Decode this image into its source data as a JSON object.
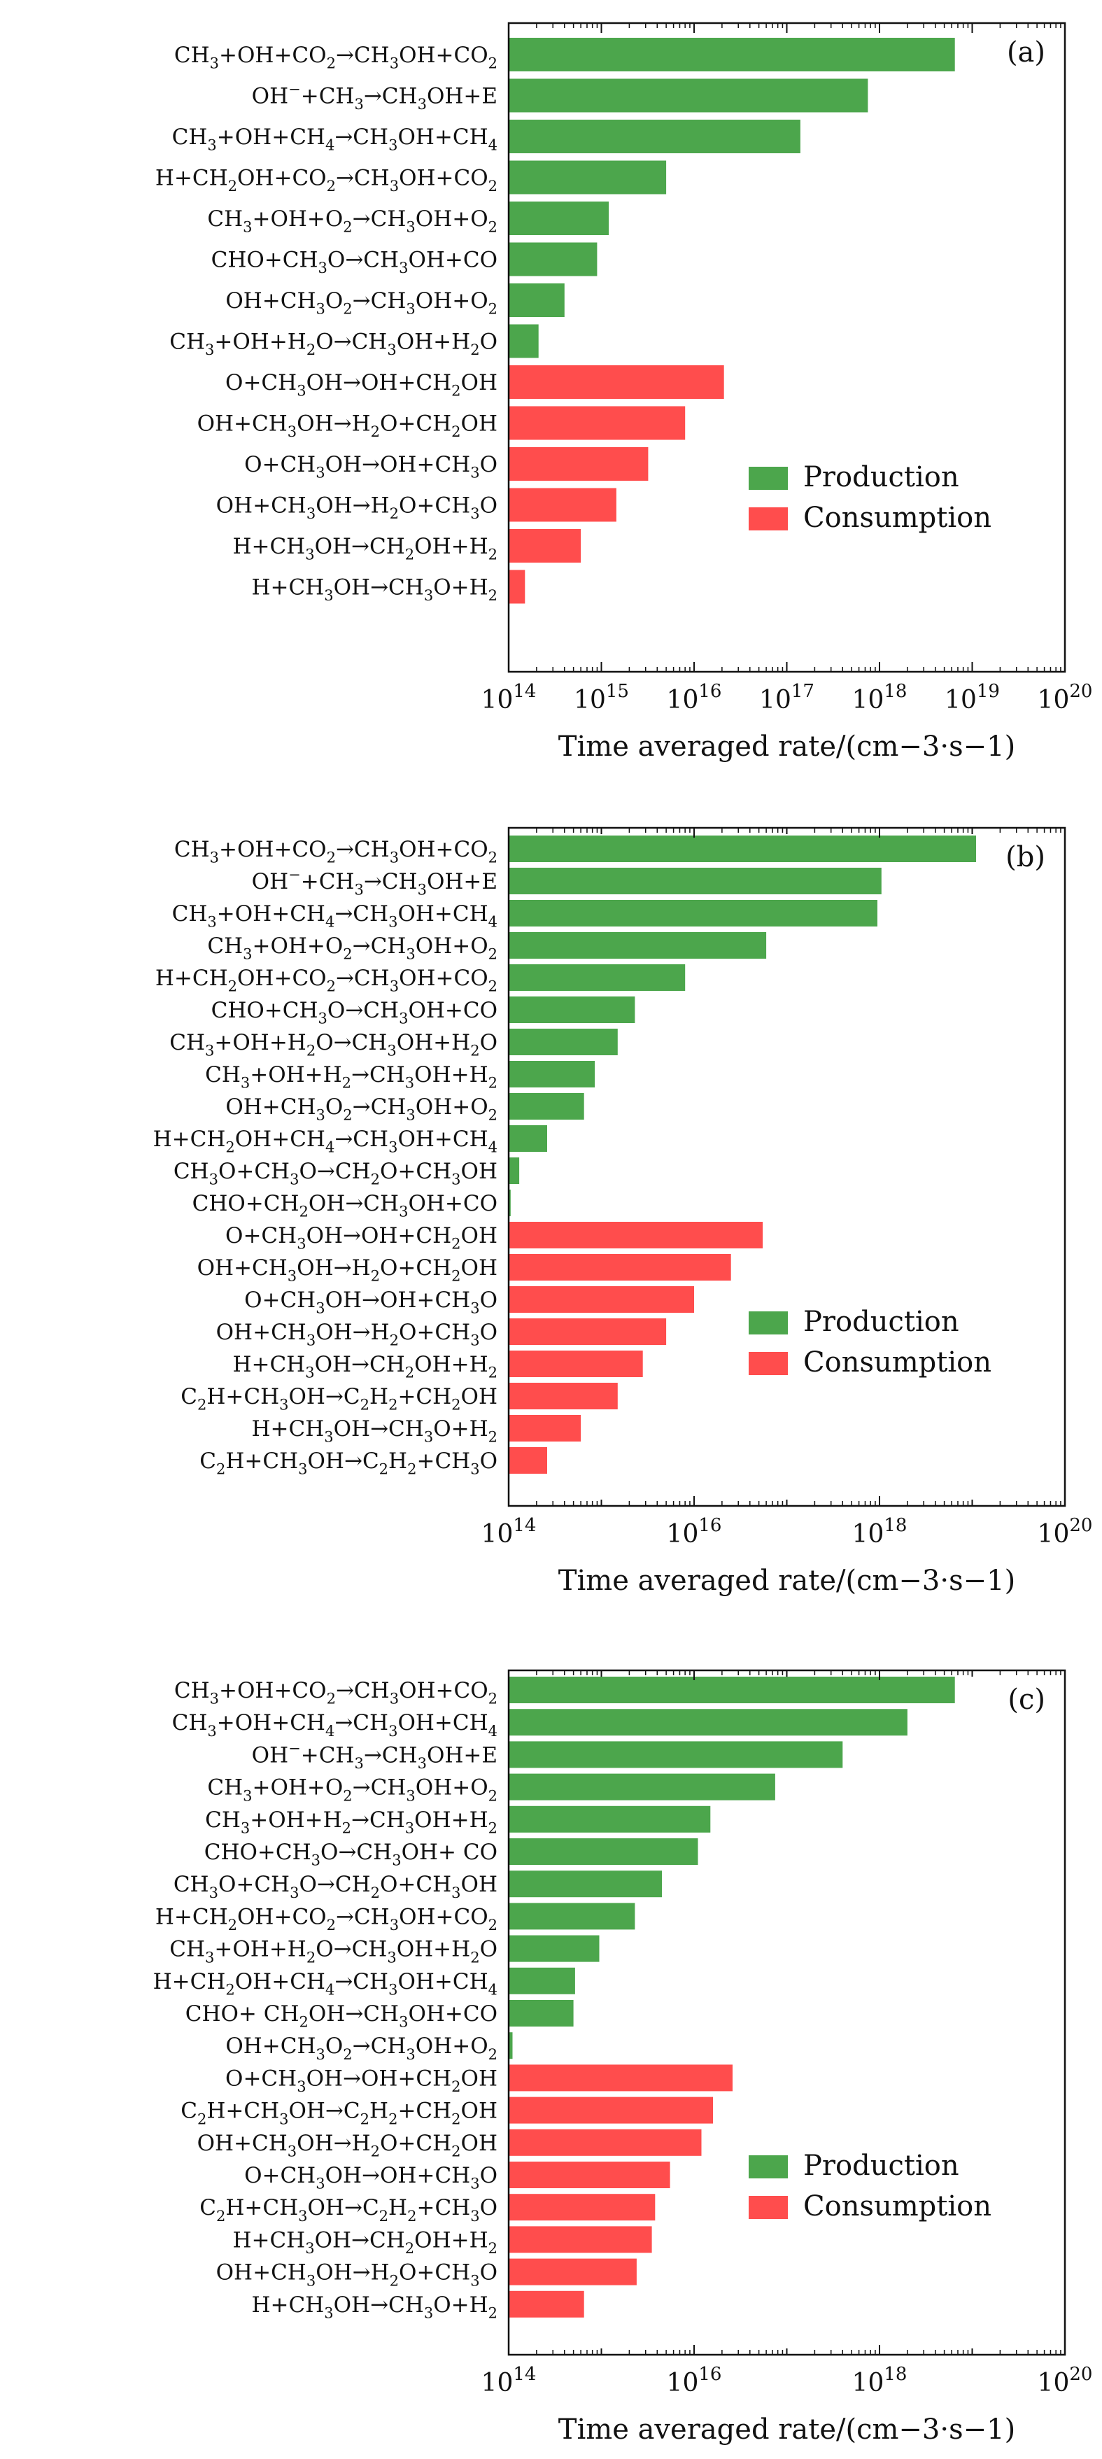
{
  "colors": {
    "production": "#4ca64c",
    "consumption": "#ff4d4d",
    "axis": "#111111"
  },
  "chart_data": [
    {
      "type": "bar",
      "orientation": "horizontal",
      "panel_label": "(a)",
      "xscale": "log10",
      "xlim": [
        100000000000000.0,
        1e+20
      ],
      "xticks": [
        14,
        15,
        16,
        17,
        18,
        19,
        20
      ],
      "xlabel": "Time averaged rate/(cm−3·s−1)",
      "legend": {
        "placement": "center-right",
        "entries": [
          "Production",
          "Consumption"
        ]
      },
      "series": [
        {
          "name": "Production",
          "reactions": [
            {
              "label": "CH3+OH+CO2→CH3OH+CO2",
              "value": 6.5e+18
            },
            {
              "label": "OH−+CH3→CH3OH+E",
              "value": 7.5e+17
            },
            {
              "label": "CH3+OH+CH4→CH3OH+CH4",
              "value": 1.4e+17
            },
            {
              "label": "H+CH2OH+CO2→CH3OH+CO2",
              "value": 5000000000000000.0
            },
            {
              "label": "CH3+OH+O2→CH3OH+O2",
              "value": 1200000000000000.0
            },
            {
              "label": "CHO+CH3O→CH3OH+CO",
              "value": 900000000000000.0
            },
            {
              "label": "OH+CH3O2→CH3OH+O2",
              "value": 400000000000000.0
            },
            {
              "label": "CH3+OH+H2O→CH3OH+H2O",
              "value": 210000000000000.0
            }
          ]
        },
        {
          "name": "Consumption",
          "reactions": [
            {
              "label": "O+CH3OH→OH+CH2OH",
              "value": 2.1e+16
            },
            {
              "label": "OH+CH3OH→H2O+CH2OH",
              "value": 8000000000000000.0
            },
            {
              "label": "O+CH3OH→OH+CH3O",
              "value": 3200000000000000.0
            },
            {
              "label": "OH+CH3OH→H2O+CH3O",
              "value": 1450000000000000.0
            },
            {
              "label": "H+CH3OH→CH2OH+H2",
              "value": 600000000000000.0
            },
            {
              "label": "H+CH3OH→CH3O+H2",
              "value": 150000000000000.0
            }
          ]
        }
      ]
    },
    {
      "type": "bar",
      "orientation": "horizontal",
      "panel_label": "(b)",
      "xscale": "log10",
      "xlim": [
        100000000000000.0,
        1e+20
      ],
      "xticks": [
        14,
        16,
        18,
        20
      ],
      "xlabel": "Time averaged rate/(cm−3·s−1)",
      "legend": {
        "placement": "center-right",
        "entries": [
          "Production",
          "Consumption"
        ]
      },
      "series": [
        {
          "name": "Production",
          "reactions": [
            {
              "label": "CH3+OH+CO2→CH3OH+CO2",
              "value": 1.1e+19
            },
            {
              "label": "OH−+CH3→CH3OH+E",
              "value": 1.05e+18
            },
            {
              "label": "CH3+OH+CH4→CH3OH+CH4",
              "value": 9.5e+17
            },
            {
              "label": "CH3+OH+O2→CH3OH+O2",
              "value": 6e+16
            },
            {
              "label": "H+CH2OH+CO2→CH3OH+CO2",
              "value": 8000000000000000.0
            },
            {
              "label": "CHO+CH3O→CH3OH+CO",
              "value": 2300000000000000.0
            },
            {
              "label": "CH3+OH+H2O→CH3OH+H2O",
              "value": 1500000000000000.0
            },
            {
              "label": "CH3+OH+H2→CH3OH+H2",
              "value": 850000000000000.0
            },
            {
              "label": "OH+CH3O2→CH3OH+O2",
              "value": 650000000000000.0
            },
            {
              "label": "H+CH2OH+CH4→CH3OH+CH4",
              "value": 260000000000000.0
            },
            {
              "label": "CH3O+CH3O→CH2O+CH3OH",
              "value": 130000000000000.0
            },
            {
              "label": "CHO+CH2OH→CH3OH+CO",
              "value": 105000000000000.0
            }
          ]
        },
        {
          "name": "Consumption",
          "reactions": [
            {
              "label": "O+CH3OH→OH+CH2OH",
              "value": 5.5e+16
            },
            {
              "label": "OH+CH3OH→H2O+CH2OH",
              "value": 2.5e+16
            },
            {
              "label": "O+CH3OH→OH+CH3O",
              "value": 1e+16
            },
            {
              "label": "OH+CH3OH→H2O+CH3O",
              "value": 5000000000000000.0
            },
            {
              "label": "H+CH3OH→CH2OH+H2",
              "value": 2800000000000000.0
            },
            {
              "label": "C2H+CH3OH→C2H2+CH2OH",
              "value": 1500000000000000.0
            },
            {
              "label": "H+CH3OH→CH3O+H2",
              "value": 600000000000000.0
            },
            {
              "label": "C2H+CH3OH→C2H2+CH3O",
              "value": 260000000000000.0
            }
          ]
        }
      ]
    },
    {
      "type": "bar",
      "orientation": "horizontal",
      "panel_label": "(c)",
      "xscale": "log10",
      "xlim": [
        100000000000000.0,
        1e+20
      ],
      "xticks": [
        14,
        16,
        18,
        20
      ],
      "xlabel": "Time averaged rate/(cm−3·s−1)",
      "legend": {
        "placement": "center-right",
        "entries": [
          "Production",
          "Consumption"
        ]
      },
      "series": [
        {
          "name": "Production",
          "reactions": [
            {
              "label": "CH3+OH+CO2→CH3OH+CO2",
              "value": 6.5e+18
            },
            {
              "label": "CH3+OH+CH4→CH3OH+CH4",
              "value": 2e+18
            },
            {
              "label": "OH−+CH3→CH3OH+E",
              "value": 4e+17
            },
            {
              "label": "CH3+OH+O2→CH3OH+O2",
              "value": 7.5e+16
            },
            {
              "label": "CH3+OH+H2→CH3OH+H2",
              "value": 1.5e+16
            },
            {
              "label": "CHO+CH3O→CH3OH+ CO",
              "value": 1.1e+16
            },
            {
              "label": "CH3O+CH3O→CH2O+CH3OH",
              "value": 4500000000000000.0
            },
            {
              "label": "H+CH2OH+CO2→CH3OH+CO2",
              "value": 2300000000000000.0
            },
            {
              "label": "CH3+OH+H2O→CH3OH+H2O",
              "value": 950000000000000.0
            },
            {
              "label": "H+CH2OH+CH4→CH3OH+CH4",
              "value": 520000000000000.0
            },
            {
              "label": "CHO+ CH2OH→CH3OH+CO",
              "value": 500000000000000.0
            },
            {
              "label": "OH+CH3O2→CH3OH+O2",
              "value": 110000000000000.0
            }
          ]
        },
        {
          "name": "Consumption",
          "reactions": [
            {
              "label": "O+CH3OH→OH+CH2OH",
              "value": 2.6e+16
            },
            {
              "label": "C2H+CH3OH→C2H2+CH2OH",
              "value": 1.6e+16
            },
            {
              "label": "OH+CH3OH→H2O+CH2OH",
              "value": 1.2e+16
            },
            {
              "label": "O+CH3OH→OH+CH3O",
              "value": 5500000000000000.0
            },
            {
              "label": "C2H+CH3OH→C2H2+CH3O",
              "value": 3800000000000000.0
            },
            {
              "label": "H+CH3OH→CH2OH+H2",
              "value": 3500000000000000.0
            },
            {
              "label": "OH+CH3OH→H2O+CH3O",
              "value": 2400000000000000.0
            },
            {
              "label": "H+CH3OH→CH3O+H2",
              "value": 650000000000000.0
            }
          ]
        }
      ]
    }
  ]
}
